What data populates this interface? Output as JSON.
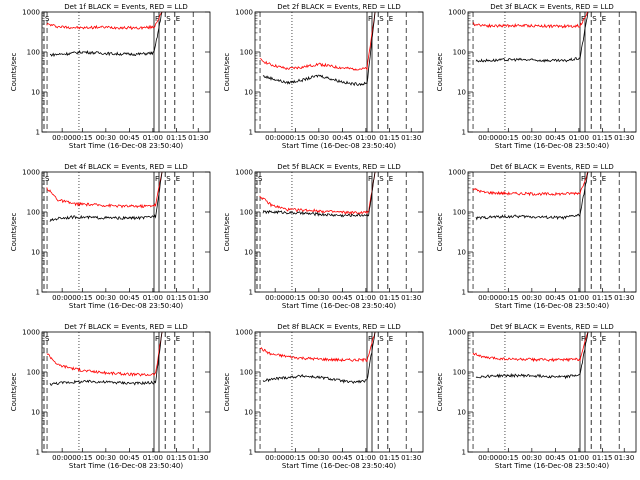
{
  "chart_data": [
    {
      "type": "line",
      "title": "Det 1f BLACK = Events, RED = LLD",
      "xlabel": "Start Time (16-Dec-08 23:50:40)",
      "ylabel": "Counts/sec",
      "yscale": "log",
      "ylim": [
        1,
        1000
      ],
      "xlim": [
        -5,
        100
      ],
      "x_tick_labels": [
        "00:00",
        "00:15",
        "00:30",
        "00:45",
        "01:00",
        "01:15",
        "01:30"
      ],
      "y_tick_labels": [
        "1",
        "10",
        "100",
        "1000"
      ],
      "markers": [
        {
          "label": "S",
          "x": -5
        },
        {
          "label": "F",
          "x": 65
        },
        {
          "label": "S",
          "x": 72
        },
        {
          "label": "E",
          "x": 78
        }
      ],
      "series": [
        {
          "color": "#ff0000",
          "values": [
            [
              -2,
              500
            ],
            [
              5,
              430
            ],
            [
              20,
              400
            ],
            [
              30,
              420
            ],
            [
              40,
              410
            ],
            [
              55,
              400
            ],
            [
              65,
              420
            ],
            [
              70,
              1000
            ]
          ]
        },
        {
          "color": "#000000",
          "values": [
            [
              0,
              85
            ],
            [
              10,
              90
            ],
            [
              20,
              100
            ],
            [
              30,
              95
            ],
            [
              40,
              90
            ],
            [
              55,
              88
            ],
            [
              65,
              95
            ],
            [
              70,
              1000
            ]
          ]
        }
      ]
    },
    {
      "type": "line",
      "title": "Det 2f BLACK = Events, RED = LLD",
      "xlabel": "Start Time (16-Dec-08 23:50:40)",
      "ylabel": "Counts/sec",
      "yscale": "log",
      "ylim": [
        1,
        1000
      ],
      "xlim": [
        -5,
        100
      ],
      "x_tick_labels": [
        "00:00",
        "00:15",
        "00:30",
        "00:45",
        "01:00",
        "01:15",
        "01:30"
      ],
      "y_tick_labels": [
        "1",
        "10",
        "100",
        "1000"
      ],
      "markers": [
        {
          "label": "F",
          "x": 65
        },
        {
          "label": "S",
          "x": 72
        },
        {
          "label": "E",
          "x": 78
        }
      ],
      "series": [
        {
          "color": "#ff0000",
          "values": [
            [
              -2,
              65
            ],
            [
              5,
              48
            ],
            [
              15,
              38
            ],
            [
              25,
              42
            ],
            [
              35,
              50
            ],
            [
              45,
              42
            ],
            [
              55,
              38
            ],
            [
              65,
              38
            ],
            [
              70,
              1000
            ]
          ]
        },
        {
          "color": "#000000",
          "values": [
            [
              0,
              25
            ],
            [
              5,
              22
            ],
            [
              15,
              17
            ],
            [
              25,
              20
            ],
            [
              35,
              26
            ],
            [
              45,
              20
            ],
            [
              55,
              16
            ],
            [
              65,
              16
            ],
            [
              70,
              1000
            ]
          ]
        }
      ]
    },
    {
      "type": "line",
      "title": "Det 3f BLACK = Events, RED = LLD",
      "xlabel": "Start Time (16-Dec-08 23:50:40)",
      "ylabel": "Counts/sec",
      "yscale": "log",
      "ylim": [
        1,
        1000
      ],
      "xlim": [
        -5,
        100
      ],
      "x_tick_labels": [
        "00:00",
        "00:15",
        "00:30",
        "00:45",
        "01:00",
        "01:15",
        "01:30"
      ],
      "y_tick_labels": [
        "1",
        "10",
        "100",
        "1000"
      ],
      "markers": [
        {
          "label": "F",
          "x": 65
        },
        {
          "label": "S",
          "x": 72
        },
        {
          "label": "E",
          "x": 78
        }
      ],
      "series": [
        {
          "color": "#ff0000",
          "values": [
            [
              -2,
              500
            ],
            [
              10,
              450
            ],
            [
              25,
              460
            ],
            [
              40,
              450
            ],
            [
              55,
              440
            ],
            [
              65,
              450
            ],
            [
              70,
              1000
            ]
          ]
        },
        {
          "color": "#000000",
          "values": [
            [
              0,
              60
            ],
            [
              10,
              62
            ],
            [
              25,
              65
            ],
            [
              40,
              62
            ],
            [
              55,
              60
            ],
            [
              65,
              70
            ],
            [
              70,
              1000
            ]
          ]
        }
      ]
    },
    {
      "type": "line",
      "title": "Det 4f BLACK = Events, RED = LLD",
      "xlabel": "Start Time (16-Dec-08 23:50:40)",
      "ylabel": "Counts/sec",
      "yscale": "log",
      "ylim": [
        1,
        1000
      ],
      "xlim": [
        -5,
        100
      ],
      "x_tick_labels": [
        "00:00",
        "00:15",
        "00:30",
        "00:45",
        "01:00",
        "01:15",
        "01:30"
      ],
      "y_tick_labels": [
        "1",
        "10",
        "100",
        "1000"
      ],
      "markers": [
        {
          "label": "S",
          "x": -5
        },
        {
          "label": "F",
          "x": 65
        },
        {
          "label": "S",
          "x": 72
        },
        {
          "label": "E",
          "x": 78
        }
      ],
      "series": [
        {
          "color": "#ff0000",
          "values": [
            [
              -2,
              400
            ],
            [
              5,
              200
            ],
            [
              15,
              160
            ],
            [
              30,
              150
            ],
            [
              45,
              140
            ],
            [
              60,
              140
            ],
            [
              66,
              150
            ],
            [
              70,
              1000
            ]
          ]
        },
        {
          "color": "#000000",
          "values": [
            [
              0,
              60
            ],
            [
              5,
              70
            ],
            [
              15,
              75
            ],
            [
              30,
              72
            ],
            [
              45,
              70
            ],
            [
              60,
              72
            ],
            [
              66,
              80
            ],
            [
              70,
              1000
            ]
          ]
        }
      ]
    },
    {
      "type": "line",
      "title": "Det 5f BLACK = Events, RED = LLD",
      "xlabel": "Start Time (16-Dec-08 23:50:40)",
      "ylabel": "Counts/sec",
      "yscale": "log",
      "ylim": [
        1,
        1000
      ],
      "xlim": [
        -5,
        100
      ],
      "x_tick_labels": [
        "00:00",
        "00:15",
        "00:30",
        "00:45",
        "01:00",
        "01:15",
        "01:30"
      ],
      "y_tick_labels": [
        "1",
        "10",
        "100",
        "1000"
      ],
      "markers": [
        {
          "label": "S",
          "x": -5
        },
        {
          "label": "F",
          "x": 65
        },
        {
          "label": "S",
          "x": 72
        },
        {
          "label": "E",
          "x": 78
        }
      ],
      "series": [
        {
          "color": "#ff0000",
          "values": [
            [
              -2,
              250
            ],
            [
              5,
              150
            ],
            [
              15,
              115
            ],
            [
              30,
              110
            ],
            [
              45,
              100
            ],
            [
              60,
              95
            ],
            [
              66,
              100
            ],
            [
              70,
              1000
            ]
          ]
        },
        {
          "color": "#000000",
          "values": [
            [
              0,
              100
            ],
            [
              10,
              100
            ],
            [
              20,
              95
            ],
            [
              35,
              88
            ],
            [
              50,
              82
            ],
            [
              66,
              85
            ],
            [
              70,
              1000
            ]
          ]
        }
      ]
    },
    {
      "type": "line",
      "title": "Det 6f BLACK = Events, RED = LLD",
      "xlabel": "Start Time (16-Dec-08 23:50:40)",
      "ylabel": "Counts/sec",
      "yscale": "log",
      "ylim": [
        1,
        1000
      ],
      "xlim": [
        -5,
        100
      ],
      "x_tick_labels": [
        "00:00",
        "00:15",
        "00:30",
        "00:45",
        "01:00",
        "01:15",
        "01:30"
      ],
      "y_tick_labels": [
        "1",
        "10",
        "100",
        "1000"
      ],
      "markers": [
        {
          "label": "F",
          "x": 65
        },
        {
          "label": "S",
          "x": 72
        },
        {
          "label": "E",
          "x": 78
        }
      ],
      "series": [
        {
          "color": "#ff0000",
          "values": [
            [
              -2,
              380
            ],
            [
              5,
              310
            ],
            [
              20,
              290
            ],
            [
              35,
              285
            ],
            [
              50,
              280
            ],
            [
              65,
              300
            ],
            [
              70,
              1000
            ]
          ]
        },
        {
          "color": "#000000",
          "values": [
            [
              0,
              70
            ],
            [
              10,
              75
            ],
            [
              25,
              78
            ],
            [
              40,
              75
            ],
            [
              55,
              72
            ],
            [
              65,
              85
            ],
            [
              70,
              1000
            ]
          ]
        }
      ]
    },
    {
      "type": "line",
      "title": "Det 7f BLACK = Events, RED = LLD",
      "xlabel": "Start Time (16-Dec-08 23:50:40)",
      "ylabel": "Counts/sec",
      "yscale": "log",
      "ylim": [
        1,
        1000
      ],
      "xlim": [
        -5,
        100
      ],
      "x_tick_labels": [
        "00:00",
        "00:15",
        "00:30",
        "00:45",
        "01:00",
        "01:15",
        "01:30"
      ],
      "y_tick_labels": [
        "1",
        "10",
        "100",
        "1000"
      ],
      "markers": [
        {
          "label": "S",
          "x": -5
        },
        {
          "label": "F",
          "x": 65
        },
        {
          "label": "S",
          "x": 72
        },
        {
          "label": "E",
          "x": 78
        }
      ],
      "series": [
        {
          "color": "#ff0000",
          "values": [
            [
              -2,
              300
            ],
            [
              5,
              150
            ],
            [
              20,
              110
            ],
            [
              35,
              95
            ],
            [
              50,
              88
            ],
            [
              60,
              85
            ],
            [
              66,
              90
            ],
            [
              70,
              1000
            ]
          ]
        },
        {
          "color": "#000000",
          "values": [
            [
              0,
              50
            ],
            [
              10,
              55
            ],
            [
              25,
              58
            ],
            [
              40,
              55
            ],
            [
              55,
              52
            ],
            [
              66,
              55
            ],
            [
              70,
              1000
            ]
          ]
        }
      ]
    },
    {
      "type": "line",
      "title": "Det 8f BLACK = Events, RED = LLD",
      "xlabel": "Start Time (16-Dec-08 23:50:40)",
      "ylabel": "Counts/sec",
      "yscale": "log",
      "ylim": [
        1,
        1000
      ],
      "xlim": [
        -5,
        100
      ],
      "x_tick_labels": [
        "00:00",
        "00:15",
        "00:30",
        "00:45",
        "01:00",
        "01:15",
        "01:30"
      ],
      "y_tick_labels": [
        "1",
        "10",
        "100",
        "1000"
      ],
      "markers": [
        {
          "label": "F",
          "x": 65
        },
        {
          "label": "S",
          "x": 72
        },
        {
          "label": "E",
          "x": 78
        }
      ],
      "series": [
        {
          "color": "#ff0000",
          "values": [
            [
              -2,
              400
            ],
            [
              5,
              280
            ],
            [
              20,
              230
            ],
            [
              35,
              210
            ],
            [
              50,
              200
            ],
            [
              65,
              200
            ],
            [
              70,
              1000
            ]
          ]
        },
        {
          "color": "#000000",
          "values": [
            [
              0,
              60
            ],
            [
              10,
              70
            ],
            [
              25,
              80
            ],
            [
              40,
              70
            ],
            [
              55,
              55
            ],
            [
              65,
              60
            ],
            [
              70,
              1000
            ]
          ]
        }
      ]
    },
    {
      "type": "line",
      "title": "Det 9f BLACK = Events, RED = LLD",
      "xlabel": "Start Time (16-Dec-08 23:50:40)",
      "ylabel": "Counts/sec",
      "yscale": "log",
      "ylim": [
        1,
        1000
      ],
      "xlim": [
        -5,
        100
      ],
      "x_tick_labels": [
        "00:00",
        "00:15",
        "00:30",
        "00:45",
        "01:00",
        "01:15",
        "01:30"
      ],
      "y_tick_labels": [
        "1",
        "10",
        "100",
        "1000"
      ],
      "markers": [
        {
          "label": "F",
          "x": 65
        },
        {
          "label": "S",
          "x": 72
        },
        {
          "label": "E",
          "x": 78
        }
      ],
      "series": [
        {
          "color": "#ff0000",
          "values": [
            [
              -2,
              300
            ],
            [
              5,
              230
            ],
            [
              20,
              210
            ],
            [
              35,
              205
            ],
            [
              50,
              200
            ],
            [
              65,
              210
            ],
            [
              70,
              1000
            ]
          ]
        },
        {
          "color": "#000000",
          "values": [
            [
              0,
              75
            ],
            [
              10,
              80
            ],
            [
              25,
              82
            ],
            [
              40,
              80
            ],
            [
              55,
              75
            ],
            [
              65,
              85
            ],
            [
              70,
              1000
            ]
          ]
        }
      ]
    }
  ]
}
